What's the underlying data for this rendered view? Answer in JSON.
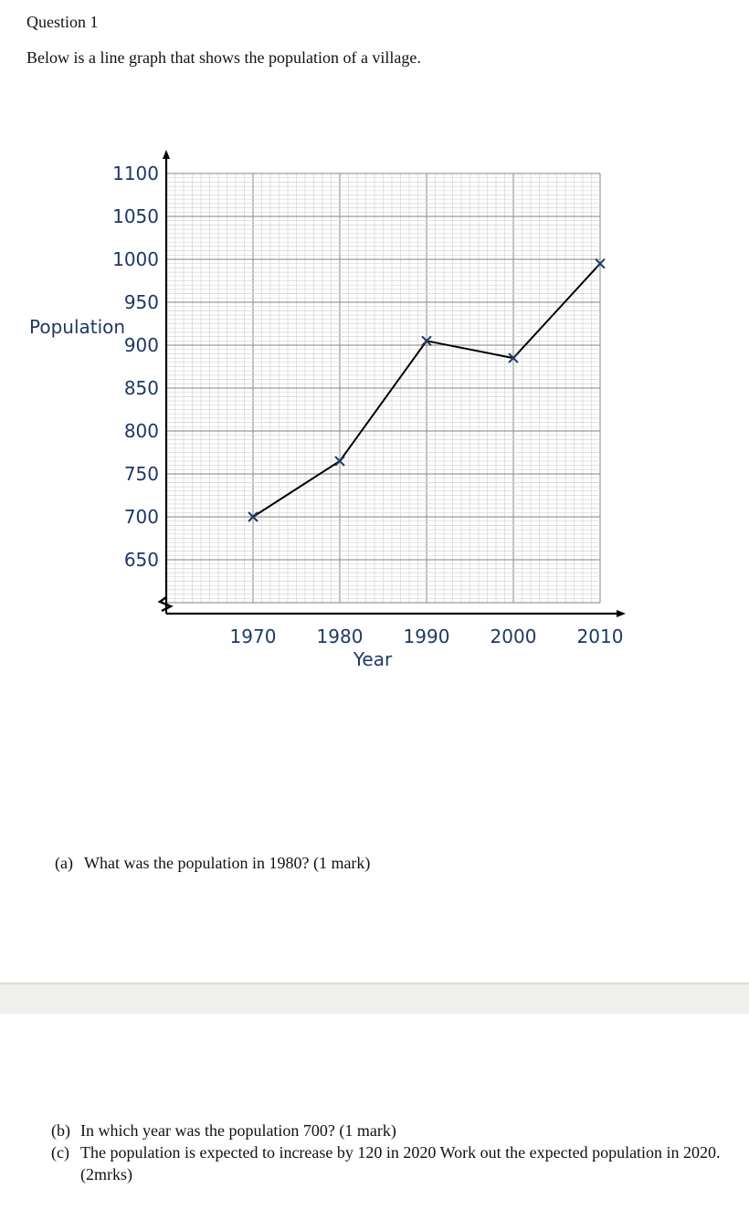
{
  "question": {
    "title": "Question 1",
    "intro": "Below is a line graph that shows the population of a village."
  },
  "chart_data": {
    "type": "line",
    "xlabel": "Year",
    "ylabel": "Population",
    "x": [
      1970,
      1980,
      1990,
      2000,
      2010
    ],
    "values": [
      700,
      765,
      905,
      885,
      995
    ],
    "x_ticks": [
      "1970",
      "1980",
      "1990",
      "2000",
      "2010"
    ],
    "y_ticks": [
      "650",
      "700",
      "750",
      "800",
      "850",
      "900",
      "950",
      "1000",
      "1050",
      "1100"
    ],
    "xlim": [
      1960,
      2010
    ],
    "ylim": [
      600,
      1100
    ],
    "grid": true,
    "marker": "x",
    "colors": {
      "line": "#000000",
      "marker": "#1f3864",
      "text": "#1f3864",
      "grid_major": "#9a9a9a",
      "grid_minor": "#d4d4d4"
    }
  },
  "questions": {
    "a": {
      "label": "(a)",
      "text": "What was the population in 1980? (1 mark)"
    },
    "b": {
      "label": "(b)",
      "text": "In which year was the population 700? (1 mark)"
    },
    "c": {
      "label": "(c)",
      "text": "The population is expected to increase by 120 in 2020 Work out the expected population in 2020.  (2mrks)"
    }
  }
}
